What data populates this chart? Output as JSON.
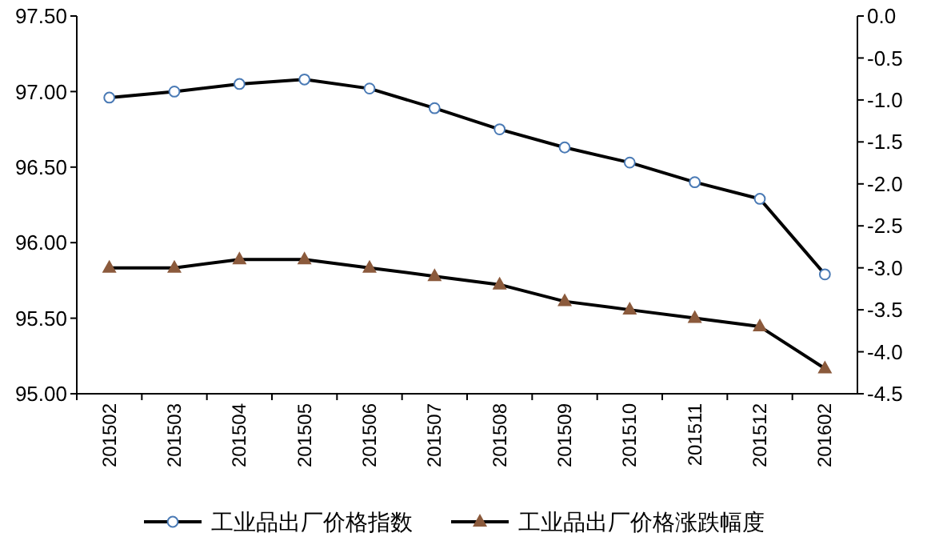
{
  "chart_data": {
    "type": "line",
    "categories": [
      "201502",
      "201503",
      "201504",
      "201505",
      "201506",
      "201507",
      "201508",
      "201509",
      "201510",
      "201511",
      "201512",
      "201602"
    ],
    "series": [
      {
        "name": "工业品出厂价格指数",
        "color": "#000000",
        "marker": "circle",
        "values": [
          96.96,
          97.0,
          97.05,
          97.08,
          97.02,
          96.89,
          96.75,
          96.63,
          96.53,
          96.4,
          96.29,
          95.79
        ]
      },
      {
        "name": "工业品出厂价格涨跌幅度",
        "color": "#000000",
        "marker": "triangle",
        "axis": "y2",
        "values": [
          -3.0,
          -3.0,
          -2.9,
          -2.9,
          -3.0,
          -3.1,
          -3.2,
          -3.4,
          -3.5,
          -3.6,
          -3.7,
          -4.2
        ]
      }
    ],
    "ylim": [
      95,
      97.5
    ],
    "yticks": [
      {
        "value": 95,
        "label": "95.00"
      },
      {
        "value": 95.5,
        "label": "95.50"
      },
      {
        "value": 96,
        "label": "96.00"
      },
      {
        "value": 96.5,
        "label": "96.50"
      },
      {
        "value": 97,
        "label": "97.00"
      },
      {
        "value": 97.5,
        "label": "97.50"
      }
    ],
    "y2lim": [
      -4.5,
      0
    ],
    "y2ticks": [
      {
        "value": -4.5,
        "label": "-4.5"
      },
      {
        "value": -4,
        "label": "-4.0"
      },
      {
        "value": -3.5,
        "label": "-3.5"
      },
      {
        "value": -3,
        "label": "-3.0"
      },
      {
        "value": -2.5,
        "label": "-2.5"
      },
      {
        "value": -2,
        "label": "-2.0"
      },
      {
        "value": -1.5,
        "label": "-1.5"
      },
      {
        "value": -1,
        "label": "-1.0"
      },
      {
        "value": -0.5,
        "label": "-0.5"
      },
      {
        "value": 0,
        "label": "0.0"
      }
    ],
    "legend": "bottom"
  }
}
